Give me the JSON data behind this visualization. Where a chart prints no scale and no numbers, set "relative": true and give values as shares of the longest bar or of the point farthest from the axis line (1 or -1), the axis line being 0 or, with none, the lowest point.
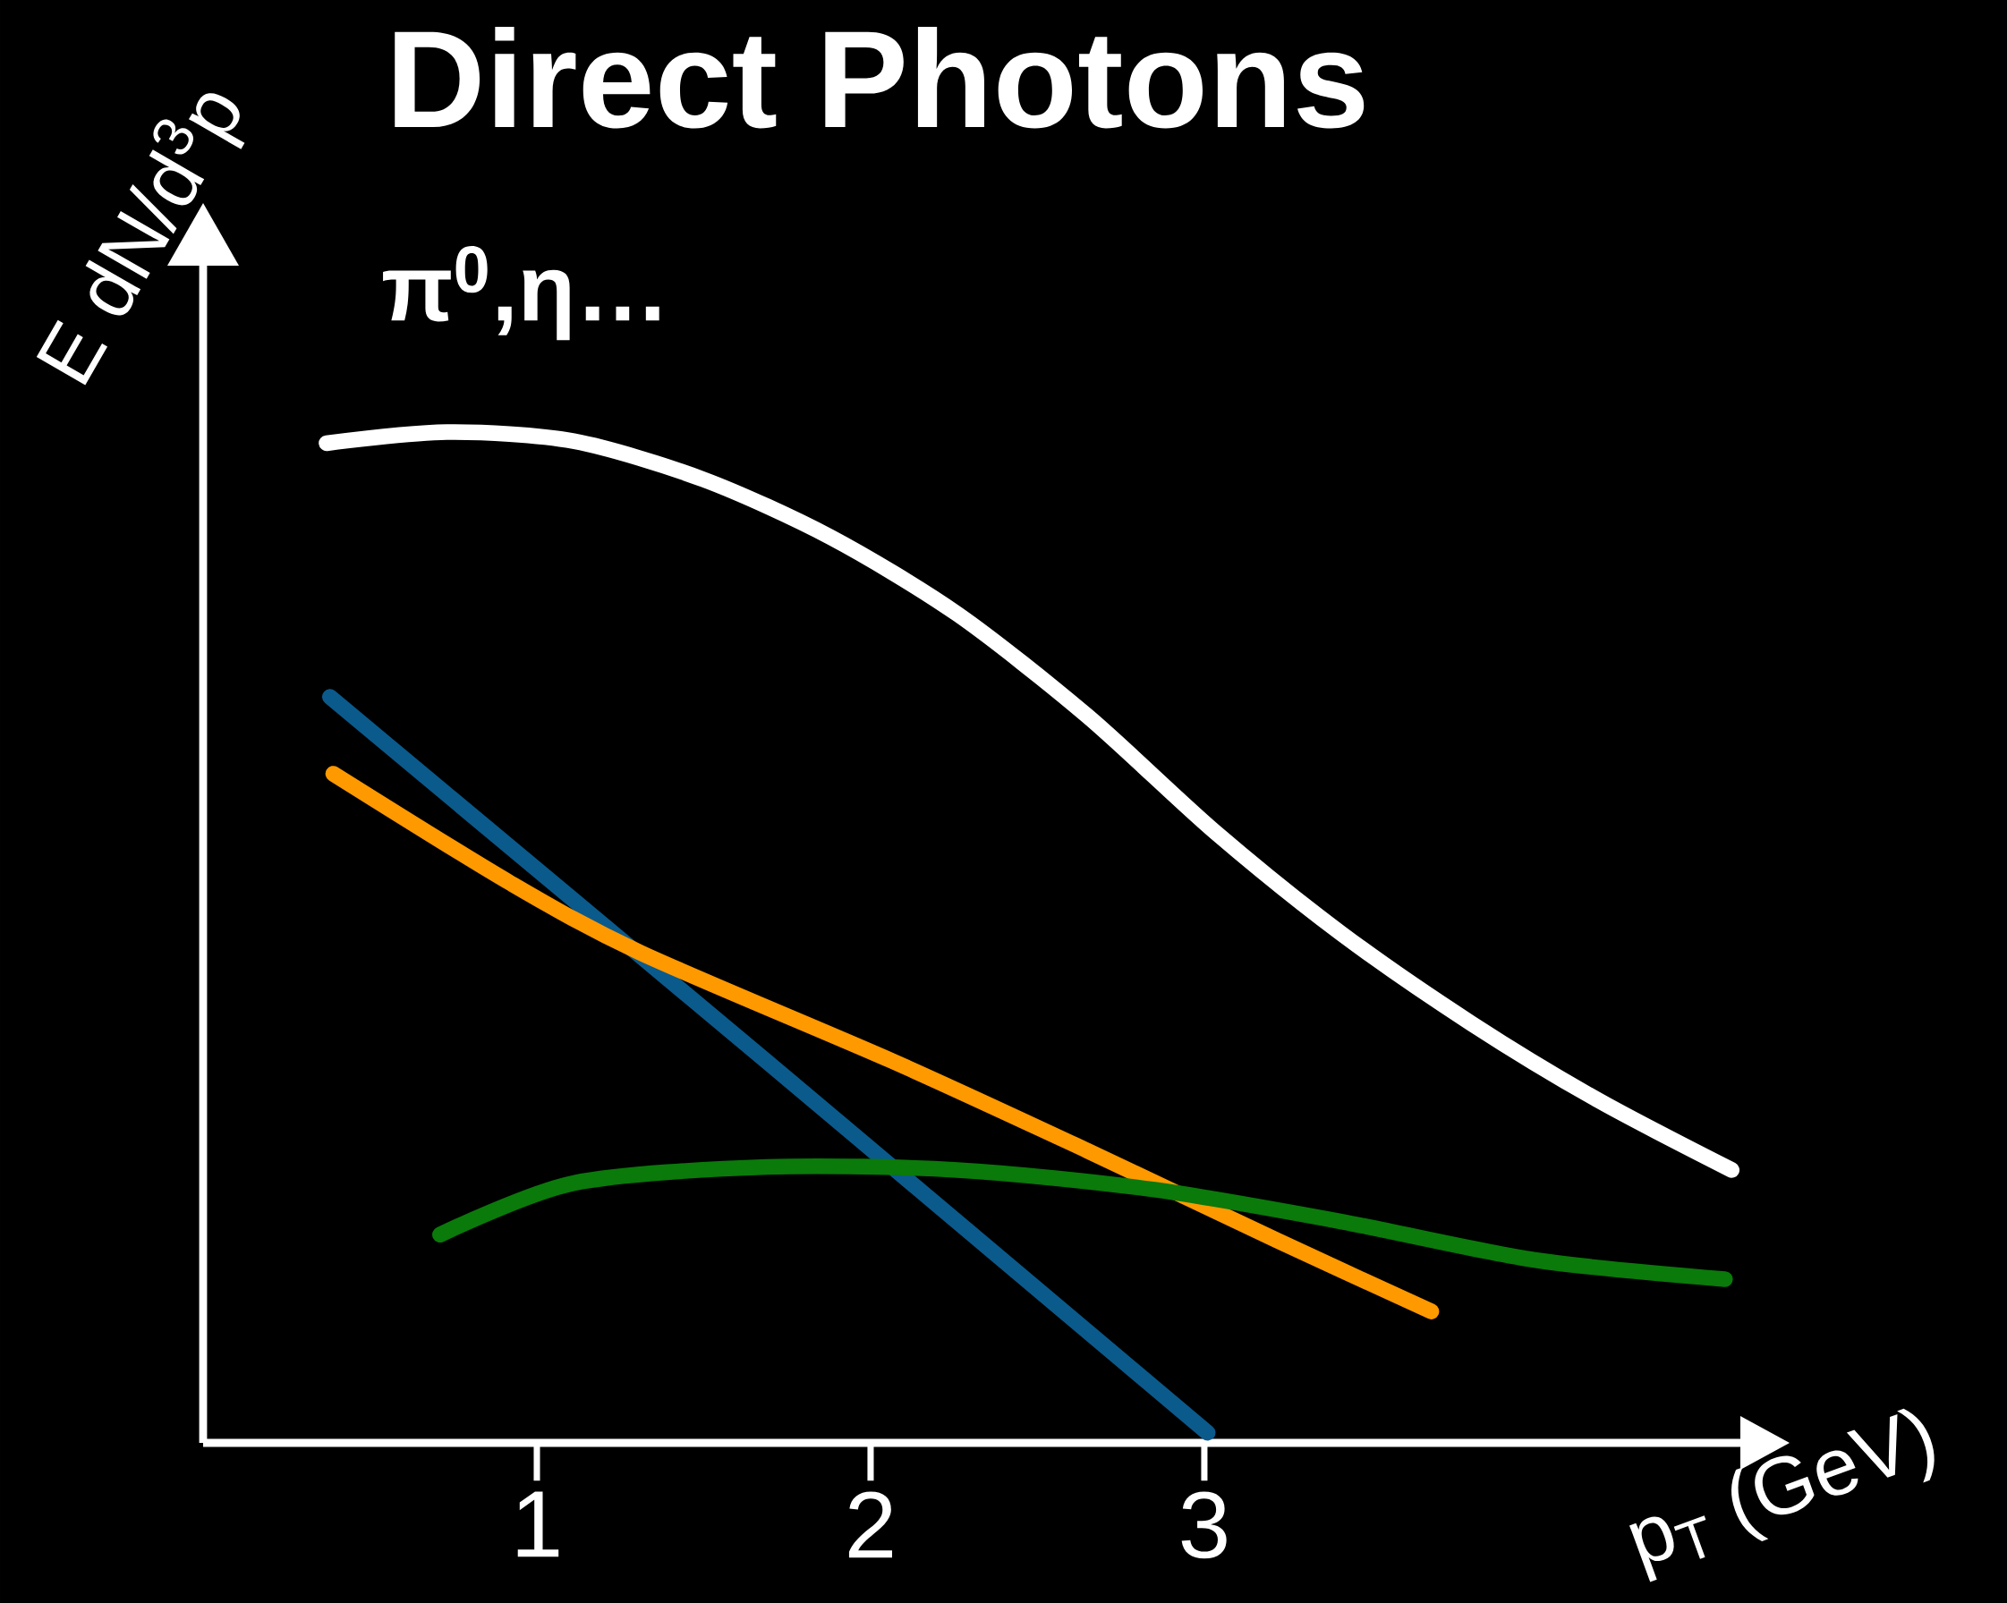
{
  "chart_data": {
    "type": "line",
    "relative": true,
    "title": "Direct Photons",
    "xlabel": "p$_{T}$ (GeV)",
    "ylabel": "E dN/d$^{3}$p",
    "annotations": [
      "π$^{0}$,η…"
    ],
    "xlim": [
      0,
      4.7
    ],
    "xticks": [
      1,
      2,
      3
    ],
    "grid": false,
    "marker": "none",
    "line_style": "solid",
    "series": [
      {
        "color": "#ffffff",
        "x": [
          0.37,
          0.73,
          1.11,
          1.5,
          1.88,
          2.26,
          2.65,
          3.03,
          3.41,
          3.8,
          4.18,
          4.58
        ],
        "values": [
          0.989,
          1.0,
          0.991,
          0.953,
          0.896,
          0.82,
          0.719,
          0.605,
          0.504,
          0.415,
          0.339,
          0.27
        ]
      },
      {
        "color": "#0b5a8c",
        "x": [
          0.38,
          1.69,
          3.01
        ],
        "values": [
          0.738,
          0.377,
          0.01
        ]
      },
      {
        "color": "#ff9900",
        "x": [
          0.39,
          0.92,
          1.31,
          2.07,
          2.65,
          3.22,
          3.68
        ],
        "values": [
          0.662,
          0.554,
          0.485,
          0.377,
          0.289,
          0.2,
          0.13
        ]
      },
      {
        "color": "#0a7a0a",
        "x": [
          0.71,
          1.11,
          1.69,
          2.26,
          2.84,
          3.41,
          3.99,
          4.56
        ],
        "values": [
          0.206,
          0.257,
          0.273,
          0.27,
          0.251,
          0.219,
          0.181,
          0.162
        ]
      }
    ]
  }
}
